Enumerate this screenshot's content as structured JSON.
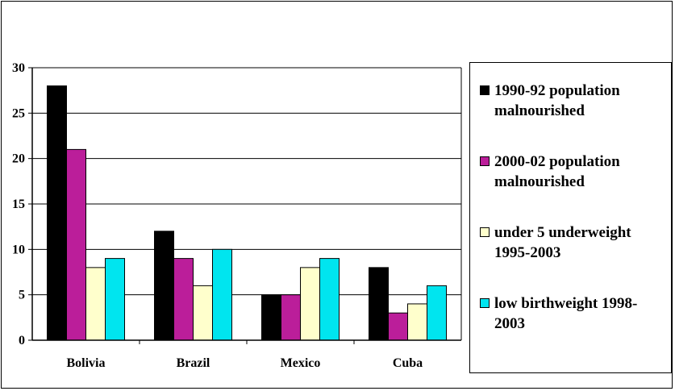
{
  "chart_data": {
    "type": "bar",
    "categories": [
      "Bolivia",
      "Brazil",
      "Mexico",
      "Cuba"
    ],
    "series": [
      {
        "name": "1990-92 population malnourished",
        "values": [
          28,
          12,
          5,
          8
        ],
        "color": "#000000"
      },
      {
        "name": "2000-02 population malnourished",
        "values": [
          21,
          9,
          5,
          3
        ],
        "color": "#bb1e9a"
      },
      {
        "name": "under 5 underweight 1995-2003",
        "values": [
          8,
          6,
          8,
          4
        ],
        "color": "#ffffcc"
      },
      {
        "name": "low birthweight 1998-2003",
        "values": [
          9,
          10,
          9,
          6
        ],
        "color": "#00e5ef"
      }
    ],
    "y_ticks": [
      "0",
      "5",
      "10",
      "15",
      "20",
      "25",
      "30"
    ],
    "ylim": [
      0,
      30
    ],
    "grid": true,
    "legend_position": "right"
  }
}
